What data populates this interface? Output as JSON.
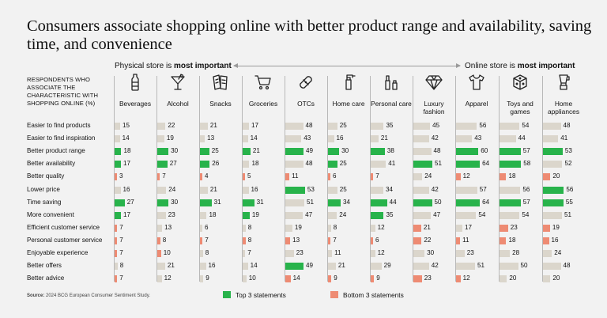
{
  "title": "Consumers associate shopping online with better product range and availability, saving time, and convenience",
  "scale": {
    "left_prefix": "Physical store is ",
    "left_strong": "most important",
    "right_prefix": "Online store is ",
    "right_strong": "most important"
  },
  "respondent_label": "RESPONDENTS WHO ASSOCIATE THE CHARACTERISTIC WITH SHOPPING ONLINE (%)",
  "legend": {
    "top": "Top 3 statements",
    "bottom": "Bottom 3 statements"
  },
  "source": {
    "label": "Source:",
    "text": " 2024 BCG European Consumer Sentiment Study."
  },
  "colors": {
    "top": "#28b34b",
    "bottom": "#ee8b73",
    "neutral": "#dbd6cc",
    "background": "#f2f2f2"
  },
  "chart_data": {
    "type": "table",
    "title": "Consumers associate shopping online with better product range and availability, saving time, and convenience",
    "x_axis_scale": "Physical store is most important ↔ Online store is most important",
    "categories": [
      {
        "name": "Beverages",
        "icon": "bottle-icon"
      },
      {
        "name": "Alcohol",
        "icon": "cocktail-glass-icon"
      },
      {
        "name": "Snacks",
        "icon": "snack-packs-icon"
      },
      {
        "name": "Groceries",
        "icon": "shopping-cart-icon"
      },
      {
        "name": "OTCs",
        "icon": "bandage-icon"
      },
      {
        "name": "Home care",
        "icon": "spray-bottle-icon"
      },
      {
        "name": "Personal care",
        "icon": "cosmetics-icon"
      },
      {
        "name": "Luxury fashion",
        "icon": "diamond-icon"
      },
      {
        "name": "Apparel",
        "icon": "t-shirt-icon"
      },
      {
        "name": "Toys and games",
        "icon": "dice-icon"
      },
      {
        "name": "Home appliances",
        "icon": "blender-icon"
      }
    ],
    "statements": [
      {
        "label": "Easier to find products",
        "values": [
          15,
          22,
          21,
          17,
          48,
          25,
          35,
          45,
          56,
          54,
          48
        ]
      },
      {
        "label": "Easier to find inspiration",
        "values": [
          14,
          19,
          13,
          14,
          43,
          16,
          21,
          42,
          43,
          44,
          41
        ]
      },
      {
        "label": "Better product range",
        "values": [
          18,
          30,
          25,
          21,
          49,
          30,
          38,
          48,
          60,
          57,
          53
        ]
      },
      {
        "label": "Better availability",
        "values": [
          17,
          27,
          26,
          18,
          48,
          25,
          41,
          51,
          64,
          58,
          52
        ]
      },
      {
        "label": "Better quality",
        "values": [
          3,
          7,
          4,
          5,
          11,
          6,
          7,
          24,
          12,
          18,
          20
        ]
      },
      {
        "label": "Lower price",
        "values": [
          16,
          24,
          21,
          16,
          53,
          25,
          34,
          42,
          57,
          56,
          56
        ]
      },
      {
        "label": "Time saving",
        "values": [
          27,
          30,
          31,
          31,
          51,
          34,
          44,
          50,
          64,
          57,
          55
        ]
      },
      {
        "label": "More convenient",
        "values": [
          17,
          23,
          18,
          19,
          47,
          24,
          35,
          47,
          54,
          54,
          51
        ]
      },
      {
        "label": "Efficient customer service",
        "values": [
          7,
          13,
          6,
          8,
          19,
          8,
          12,
          21,
          17,
          23,
          19
        ]
      },
      {
        "label": "Personal customer service",
        "values": [
          7,
          8,
          7,
          8,
          13,
          7,
          6,
          22,
          11,
          18,
          16
        ]
      },
      {
        "label": "Enjoyable experience",
        "values": [
          7,
          10,
          8,
          7,
          23,
          11,
          12,
          30,
          23,
          28,
          24
        ]
      },
      {
        "label": "Better offers",
        "values": [
          8,
          21,
          16,
          14,
          49,
          21,
          29,
          42,
          51,
          50,
          48
        ]
      },
      {
        "label": "Better advice",
        "values": [
          7,
          12,
          9,
          10,
          14,
          9,
          9,
          23,
          12,
          20,
          20
        ]
      }
    ],
    "highlights": {
      "top": [
        [
          0,
          2
        ],
        [
          0,
          3
        ],
        [
          0,
          6
        ],
        [
          0,
          7
        ],
        [
          1,
          2
        ],
        [
          1,
          3
        ],
        [
          1,
          6
        ],
        [
          2,
          2
        ],
        [
          2,
          3
        ],
        [
          2,
          6
        ],
        [
          3,
          2
        ],
        [
          3,
          6
        ],
        [
          3,
          7
        ],
        [
          4,
          2
        ],
        [
          4,
          5
        ],
        [
          4,
          11
        ],
        [
          5,
          2
        ],
        [
          5,
          3
        ],
        [
          5,
          6
        ],
        [
          6,
          2
        ],
        [
          6,
          6
        ],
        [
          6,
          7
        ],
        [
          7,
          3
        ],
        [
          7,
          6
        ],
        [
          8,
          2
        ],
        [
          8,
          3
        ],
        [
          8,
          6
        ],
        [
          9,
          2
        ],
        [
          9,
          3
        ],
        [
          9,
          6
        ],
        [
          10,
          2
        ],
        [
          10,
          5
        ],
        [
          10,
          6
        ]
      ],
      "bottom": [
        [
          0,
          4
        ],
        [
          0,
          8
        ],
        [
          0,
          9
        ],
        [
          0,
          10
        ],
        [
          0,
          12
        ],
        [
          1,
          4
        ],
        [
          1,
          9
        ],
        [
          1,
          10
        ],
        [
          2,
          4
        ],
        [
          2,
          9
        ],
        [
          3,
          4
        ],
        [
          3,
          9
        ],
        [
          4,
          4
        ],
        [
          4,
          9
        ],
        [
          4,
          12
        ],
        [
          5,
          4
        ],
        [
          5,
          9
        ],
        [
          5,
          12
        ],
        [
          6,
          4
        ],
        [
          6,
          9
        ],
        [
          6,
          12
        ],
        [
          7,
          8
        ],
        [
          7,
          9
        ],
        [
          7,
          12
        ],
        [
          8,
          4
        ],
        [
          8,
          9
        ],
        [
          8,
          12
        ],
        [
          9,
          4
        ],
        [
          9,
          8
        ],
        [
          9,
          9
        ],
        [
          10,
          4
        ],
        [
          10,
          8
        ],
        [
          10,
          9
        ]
      ]
    },
    "value_range": [
      0,
      100
    ],
    "unit": "%"
  }
}
